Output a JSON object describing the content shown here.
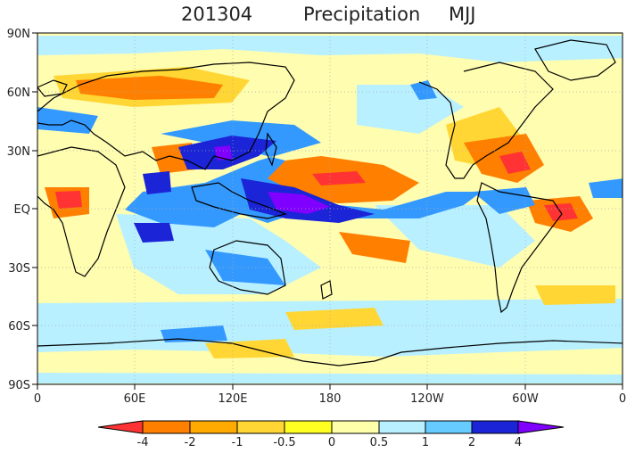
{
  "title": {
    "period": "201304",
    "variable": "Precipitation",
    "season": "MJJ"
  },
  "axes": {
    "lat_labels": [
      "90N",
      "60N",
      "30N",
      "EQ",
      "30S",
      "60S",
      "90S"
    ],
    "lon_labels": [
      "0",
      "60E",
      "120E",
      "180",
      "120W",
      "60W",
      "0"
    ]
  },
  "colorbar": {
    "tick_labels": [
      "-4",
      "-2",
      "-1",
      "-0.5",
      "0",
      "0.5",
      "1",
      "2",
      "4"
    ],
    "colors": [
      "#ff3333",
      "#ff7f00",
      "#ffaa00",
      "#ffd633",
      "#ffff22",
      "#ffffaa",
      "#b8f0ff",
      "#66ccff",
      "#3399ff",
      "#2255ee",
      "#1b24d6",
      "#8000ff"
    ]
  },
  "map_colors": {
    "ocean_background": "#fffdb0",
    "coastline": "#000000",
    "gridline": "#aaaaaa"
  }
}
